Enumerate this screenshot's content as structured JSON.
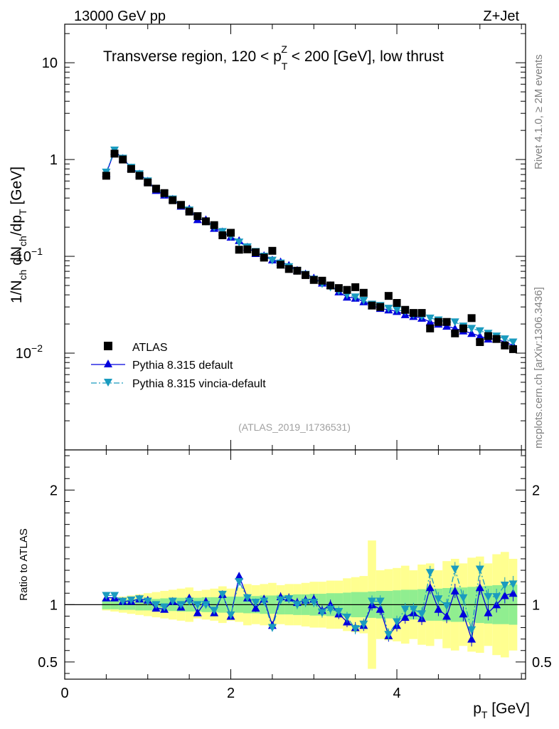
{
  "header": {
    "left_label": "13000 GeV pp",
    "right_label": "Z+Jet"
  },
  "side_labels": {
    "rivet": "Rivet 4.1.0, ≥ 2M events",
    "mcplots": "mcplots.cern.ch [arXiv:1306.3436]"
  },
  "chart_data": [
    {
      "type": "scatter",
      "panel": "main",
      "title": "Transverse region, 120 < p_T^Z < 200 [GeV], low thrust",
      "title_parts": {
        "pre": "Transverse region, 120 < p",
        "sub": "T",
        "sup": "Z",
        "post": " < 200 [GeV], low thrust"
      },
      "ylabel": "1/N_ch dN_ch/dp_T [GeV]",
      "ylabel_parts": {
        "a": "1/N",
        "a_sub": "ch",
        "b": " dN",
        "b_sub": "ch",
        "c": "/dp",
        "c_sub": "T",
        "d": " [GeV]"
      },
      "yscale": "log",
      "xlim": [
        0,
        5.55
      ],
      "ylim": [
        0.001,
        25
      ],
      "y_ticks": [
        {
          "value": 10,
          "label": "10"
        },
        {
          "value": 1,
          "label": "1"
        },
        {
          "value": 0.1,
          "label": "10",
          "exp": "−1"
        },
        {
          "value": 0.01,
          "label": "10",
          "exp": "−2"
        }
      ],
      "watermark": "(ATLAS_2019_I1736531)",
      "legend_position": "lower-left",
      "x": [
        0.5,
        0.6,
        0.7,
        0.8,
        0.9,
        1.0,
        1.1,
        1.2,
        1.3,
        1.4,
        1.5,
        1.6,
        1.7,
        1.8,
        1.9,
        2.0,
        2.1,
        2.2,
        2.3,
        2.4,
        2.5,
        2.6,
        2.7,
        2.8,
        2.9,
        3.0,
        3.1,
        3.2,
        3.3,
        3.4,
        3.5,
        3.6,
        3.7,
        3.8,
        3.9,
        4.0,
        4.1,
        4.2,
        4.3,
        4.4,
        4.5,
        4.6,
        4.7,
        4.8,
        4.9,
        5.0,
        5.1,
        5.2,
        5.3,
        5.4
      ],
      "series": [
        {
          "name": "ATLAS",
          "marker": "square",
          "color": "#000000",
          "values": [
            0.68,
            1.15,
            1.0,
            0.8,
            0.68,
            0.58,
            0.5,
            0.45,
            0.38,
            0.34,
            0.29,
            0.26,
            0.23,
            0.21,
            0.165,
            0.175,
            0.117,
            0.118,
            0.11,
            0.097,
            0.114,
            0.082,
            0.074,
            0.071,
            0.064,
            0.057,
            0.056,
            0.05,
            0.047,
            0.045,
            0.048,
            0.042,
            0.031,
            0.03,
            0.039,
            0.033,
            0.028,
            0.026,
            0.026,
            0.018,
            0.021,
            0.021,
            0.016,
            0.018,
            0.023,
            0.013,
            0.015,
            0.014,
            0.012,
            0.011
          ]
        },
        {
          "name": "Pythia 8.315 default",
          "marker": "triangle-up",
          "color": "#0000dd",
          "line": "solid",
          "values": [
            0.72,
            1.22,
            1.03,
            0.82,
            0.71,
            0.6,
            0.48,
            0.43,
            0.39,
            0.33,
            0.31,
            0.24,
            0.24,
            0.195,
            0.18,
            0.158,
            0.146,
            0.125,
            0.107,
            0.102,
            0.092,
            0.088,
            0.081,
            0.072,
            0.066,
            0.06,
            0.053,
            0.05,
            0.043,
            0.038,
            0.037,
            0.034,
            0.031,
            0.029,
            0.028,
            0.027,
            0.025,
            0.024,
            0.023,
            0.021,
            0.02,
            0.019,
            0.018,
            0.017,
            0.016,
            0.015,
            0.014,
            0.014,
            0.013,
            0.012
          ]
        },
        {
          "name": "Pythia 8.315 vincia-default",
          "marker": "triangle-down",
          "color": "#1a9bbf",
          "line": "dashdot",
          "values": [
            0.74,
            1.25,
            1.03,
            0.83,
            0.71,
            0.6,
            0.5,
            0.44,
            0.39,
            0.34,
            0.3,
            0.26,
            0.23,
            0.2,
            0.18,
            0.16,
            0.14,
            0.125,
            0.112,
            0.1,
            0.091,
            0.085,
            0.078,
            0.071,
            0.065,
            0.058,
            0.052,
            0.048,
            0.044,
            0.04,
            0.038,
            0.035,
            0.032,
            0.031,
            0.029,
            0.028,
            0.027,
            0.025,
            0.024,
            0.023,
            0.022,
            0.021,
            0.021,
            0.019,
            0.018,
            0.017,
            0.016,
            0.015,
            0.014,
            0.013
          ]
        }
      ]
    },
    {
      "type": "scatter",
      "panel": "ratio",
      "xlabel": "p_T [GeV]",
      "xlabel_parts": {
        "a": "p",
        "a_sub": "T",
        "b": " [GeV]"
      },
      "ylabel": "Ratio to ATLAS",
      "xlim": [
        0,
        5.55
      ],
      "ylim": [
        0.35,
        2.35
      ],
      "x_ticks": [
        {
          "value": 0,
          "label": "0"
        },
        {
          "value": 2,
          "label": "2"
        },
        {
          "value": 4,
          "label": "4"
        }
      ],
      "y_ticks": [
        {
          "value": 0.5,
          "label": "0.5"
        },
        {
          "value": 1,
          "label": "1"
        },
        {
          "value": 2,
          "label": "2"
        }
      ],
      "reference_line": 1,
      "bands": {
        "stat": {
          "color": "#90ee90",
          "half_width": [
            0.04,
            0.04,
            0.045,
            0.045,
            0.05,
            0.05,
            0.05,
            0.055,
            0.055,
            0.06,
            0.06,
            0.06,
            0.065,
            0.065,
            0.07,
            0.07,
            0.07,
            0.075,
            0.075,
            0.08,
            0.08,
            0.085,
            0.085,
            0.09,
            0.09,
            0.095,
            0.095,
            0.1,
            0.1,
            0.105,
            0.11,
            0.11,
            0.115,
            0.12,
            0.12,
            0.125,
            0.13,
            0.13,
            0.135,
            0.14,
            0.14,
            0.145,
            0.15,
            0.15,
            0.155,
            0.16,
            0.165,
            0.17,
            0.17,
            0.175
          ]
        },
        "total": {
          "color": "#ffff90",
          "half_width": [
            0.05,
            0.06,
            0.07,
            0.08,
            0.09,
            0.1,
            0.11,
            0.12,
            0.13,
            0.14,
            0.15,
            0.12,
            0.13,
            0.14,
            0.16,
            0.14,
            0.15,
            0.18,
            0.17,
            0.18,
            0.19,
            0.17,
            0.18,
            0.18,
            0.19,
            0.2,
            0.2,
            0.21,
            0.21,
            0.23,
            0.24,
            0.25,
            0.56,
            0.3,
            0.31,
            0.32,
            0.34,
            0.3,
            0.35,
            0.36,
            0.3,
            0.38,
            0.4,
            0.36,
            0.41,
            0.42,
            0.36,
            0.44,
            0.46,
            0.4
          ]
        }
      },
      "series": [
        {
          "name": "Pythia 8.315 default",
          "color": "#0000dd",
          "values": [
            1.06,
            1.06,
            1.03,
            1.03,
            1.05,
            1.04,
            0.97,
            0.96,
            1.03,
            0.98,
            1.06,
            0.93,
            1.03,
            0.93,
            1.09,
            0.9,
            1.25,
            1.06,
            0.97,
            1.05,
            0.82,
            1.07,
            1.06,
            1.02,
            1.04,
            1.05,
            0.95,
            1.0,
            0.92,
            0.85,
            0.8,
            0.82,
            1.0,
            0.96,
            0.73,
            0.82,
            0.89,
            0.93,
            0.88,
            1.15,
            0.96,
            0.9,
            1.12,
            0.92,
            0.7,
            1.15,
            0.93,
            1.0,
            1.08,
            1.1
          ]
        },
        {
          "name": "Pythia 8.315 vincia-default",
          "color": "#1a9bbf",
          "values": [
            1.08,
            1.08,
            1.03,
            1.04,
            1.05,
            1.03,
            1.0,
            0.98,
            1.03,
            1.0,
            1.03,
            1.0,
            1.0,
            0.95,
            1.09,
            0.91,
            1.2,
            1.06,
            1.02,
            1.03,
            0.8,
            1.04,
            1.05,
            1.0,
            1.02,
            1.02,
            0.93,
            0.96,
            0.94,
            0.89,
            0.79,
            0.83,
            1.03,
            1.03,
            0.74,
            0.85,
            0.96,
            0.96,
            0.92,
            1.28,
            1.05,
            0.99,
            1.31,
            1.06,
            0.78,
            1.31,
            1.07,
            1.07,
            1.17,
            1.18
          ]
        }
      ]
    }
  ],
  "legend": {
    "atlas": "ATLAS",
    "default": "Pythia 8.315 default",
    "vincia": "Pythia 8.315 vincia-default"
  }
}
